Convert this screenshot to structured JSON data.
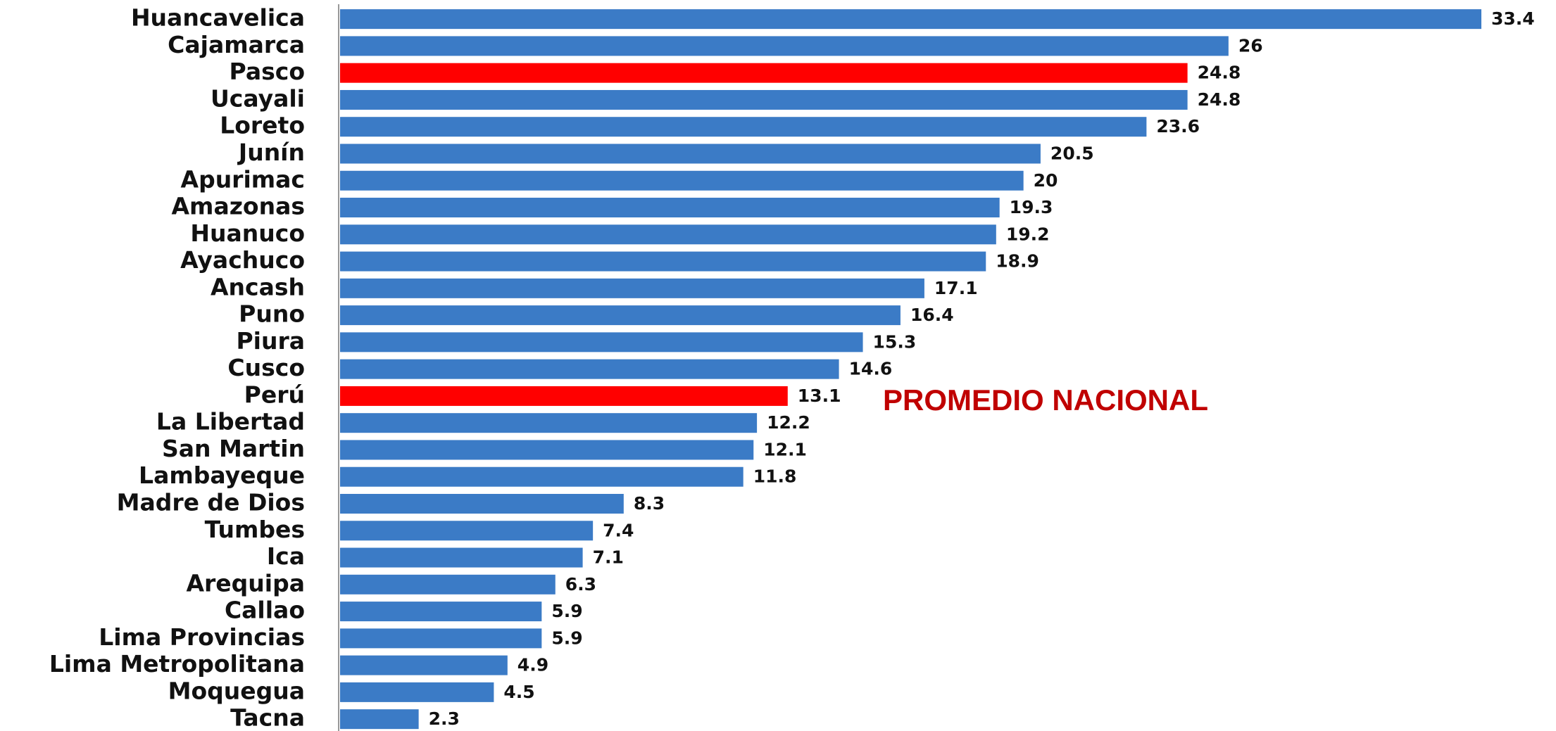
{
  "chart_data": {
    "type": "bar",
    "orientation": "horizontal",
    "categories": [
      "Huancavelica",
      "Cajamarca",
      "Pasco",
      "Ucayali",
      "Loreto",
      "Junín",
      "Apurimac",
      "Amazonas",
      "Huanuco",
      "Ayachuco",
      "Ancash",
      "Puno",
      "Piura",
      "Cusco",
      "Perú",
      "La Libertad",
      "San Martin",
      "Lambayeque",
      "Madre de Dios",
      "Tumbes",
      "Ica",
      "Arequipa",
      "Callao",
      "Lima Provincias",
      "Lima Metropolitana",
      "Moquegua",
      "Tacna"
    ],
    "values": [
      33.4,
      26,
      24.8,
      24.8,
      23.6,
      20.5,
      20,
      19.3,
      19.2,
      18.9,
      17.1,
      16.4,
      15.3,
      14.6,
      13.1,
      12.2,
      12.1,
      11.8,
      8.3,
      7.4,
      7.1,
      6.3,
      5.9,
      5.9,
      4.9,
      4.5,
      2.3
    ],
    "colors": [
      "#3b7bc6",
      "#3b7bc6",
      "#ff0000",
      "#3b7bc6",
      "#3b7bc6",
      "#3b7bc6",
      "#3b7bc6",
      "#3b7bc6",
      "#3b7bc6",
      "#3b7bc6",
      "#3b7bc6",
      "#3b7bc6",
      "#3b7bc6",
      "#3b7bc6",
      "#ff0000",
      "#3b7bc6",
      "#3b7bc6",
      "#3b7bc6",
      "#3b7bc6",
      "#3b7bc6",
      "#3b7bc6",
      "#3b7bc6",
      "#3b7bc6",
      "#3b7bc6",
      "#3b7bc6",
      "#3b7bc6",
      "#3b7bc6"
    ],
    "annotation": {
      "text": "PROMEDIO NACIONAL",
      "color": "#c00000"
    }
  }
}
